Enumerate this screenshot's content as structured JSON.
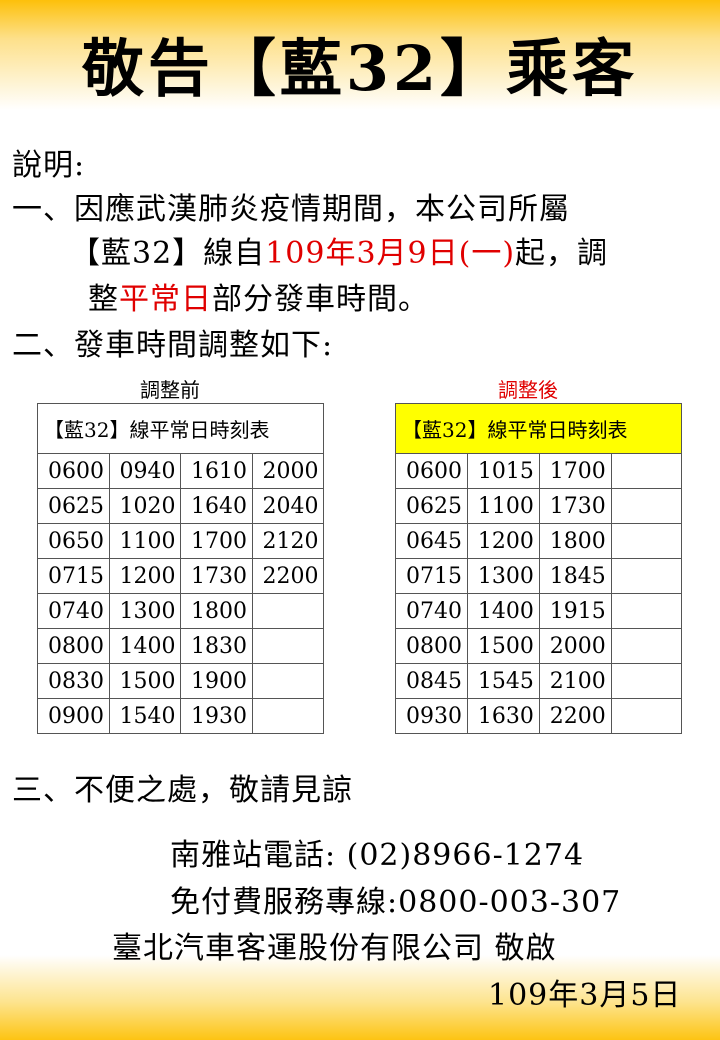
{
  "title": "敬告【藍32】乘客",
  "intro_label": "說明:",
  "item1": {
    "line1": "一、因應武漢肺炎疫情期間，本公司所屬",
    "line2_a": "【藍32】線自",
    "line2_red": "109年3月9日(一)",
    "line2_b": "起，調",
    "line3_a": "整",
    "line3_red": "平常日",
    "line3_b": "部分發車時間。"
  },
  "item2": "二、發車時間調整如下:",
  "before": {
    "caption": "調整前",
    "header": "【藍32】線平常日時刻表",
    "rows": [
      [
        "0600",
        "0940",
        "1610",
        "2000"
      ],
      [
        "0625",
        "1020",
        "1640",
        "2040"
      ],
      [
        "0650",
        "1100",
        "1700",
        "2120"
      ],
      [
        "0715",
        "1200",
        "1730",
        "2200"
      ],
      [
        "0740",
        "1300",
        "1800",
        ""
      ],
      [
        "0800",
        "1400",
        "1830",
        ""
      ],
      [
        "0830",
        "1500",
        "1900",
        ""
      ],
      [
        "0900",
        "1540",
        "1930",
        ""
      ]
    ]
  },
  "after": {
    "caption": "調整後",
    "header": "【藍32】線平常日時刻表",
    "rows": [
      [
        "0600",
        "1015",
        "1700",
        ""
      ],
      [
        "0625",
        "1100",
        "1730",
        ""
      ],
      [
        "0645",
        "1200",
        "1800",
        ""
      ],
      [
        "0715",
        "1300",
        "1845",
        ""
      ],
      [
        "0740",
        "1400",
        "1915",
        ""
      ],
      [
        "0800",
        "1500",
        "2000",
        ""
      ],
      [
        "0845",
        "1545",
        "2100",
        ""
      ],
      [
        "0930",
        "1630",
        "2200",
        ""
      ]
    ]
  },
  "item3": "三、不便之處，敬請見諒",
  "contact": {
    "station_phone": "南雅站電話: (02)8966-1274",
    "toll_free": "免付費服務專線:0800-003-307",
    "company": "臺北汽車客運股份有限公司 敬啟",
    "date": "109年3月5日"
  },
  "colors": {
    "highlight": "#ffff00",
    "emphasis": "#e00000",
    "banner": "#fdc00a"
  }
}
